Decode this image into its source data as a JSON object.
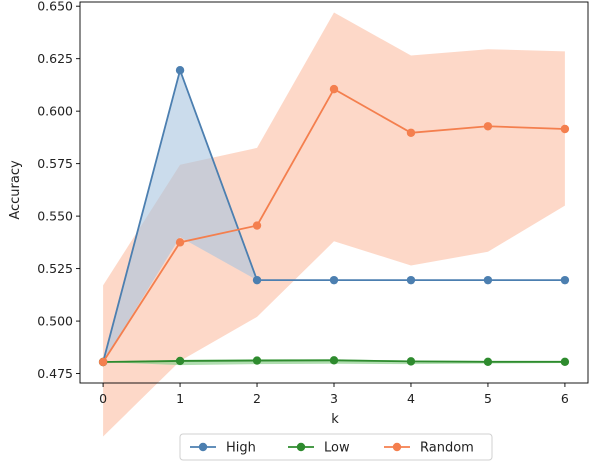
{
  "chart_data": {
    "type": "line",
    "xlabel": "k",
    "ylabel": "Accuracy",
    "x": [
      0,
      1,
      2,
      3,
      4,
      5,
      6
    ],
    "xlim": [
      -0.3,
      6.3
    ],
    "ylim": [
      0.4705,
      0.652
    ],
    "xticks": [
      0,
      1,
      2,
      3,
      4,
      5,
      6
    ],
    "yticks": [
      0.475,
      0.5,
      0.525,
      0.55,
      0.575,
      0.6,
      0.625,
      0.65
    ],
    "ytick_labels": [
      "0.475",
      "0.500",
      "0.525",
      "0.550",
      "0.575",
      "0.600",
      "0.625",
      "0.650"
    ],
    "legend_placement": "bottom-center, below axes",
    "series": [
      {
        "name": "High",
        "color": "#4c7fb0",
        "band_color": "#a9c4e0",
        "values": [
          0.4805,
          0.6195,
          0.5195,
          0.5195,
          0.5195,
          0.5195,
          0.5195
        ],
        "band_lower": [
          0.4805,
          0.54,
          0.5195,
          0.5195,
          0.5195,
          0.5195,
          0.5195
        ],
        "band_upper": [
          0.4805,
          0.6195,
          0.5195,
          0.5195,
          0.5195,
          0.5195,
          0.5195
        ]
      },
      {
        "name": "Low",
        "color": "#2e8b2e",
        "band_color": "#8fd08f",
        "values": [
          0.4805,
          0.481,
          0.4812,
          0.4813,
          0.4808,
          0.4806,
          0.4806
        ],
        "band_lower": [
          0.4805,
          0.479,
          0.4795,
          0.4797,
          0.4795,
          0.4798,
          0.48
        ],
        "band_upper": [
          0.4805,
          0.4815,
          0.4818,
          0.4818,
          0.4812,
          0.481,
          0.4809
        ]
      },
      {
        "name": "Random",
        "color": "#f47f4e",
        "band_color": "#fcc7b0",
        "values": [
          0.4805,
          0.5375,
          0.5455,
          0.6105,
          0.5897,
          0.5928,
          0.5915
        ],
        "band_lower": [
          0.445,
          0.481,
          0.502,
          0.538,
          0.5265,
          0.533,
          0.555
        ],
        "band_upper": [
          0.517,
          0.5745,
          0.5825,
          0.647,
          0.6265,
          0.6295,
          0.6285
        ]
      }
    ]
  }
}
